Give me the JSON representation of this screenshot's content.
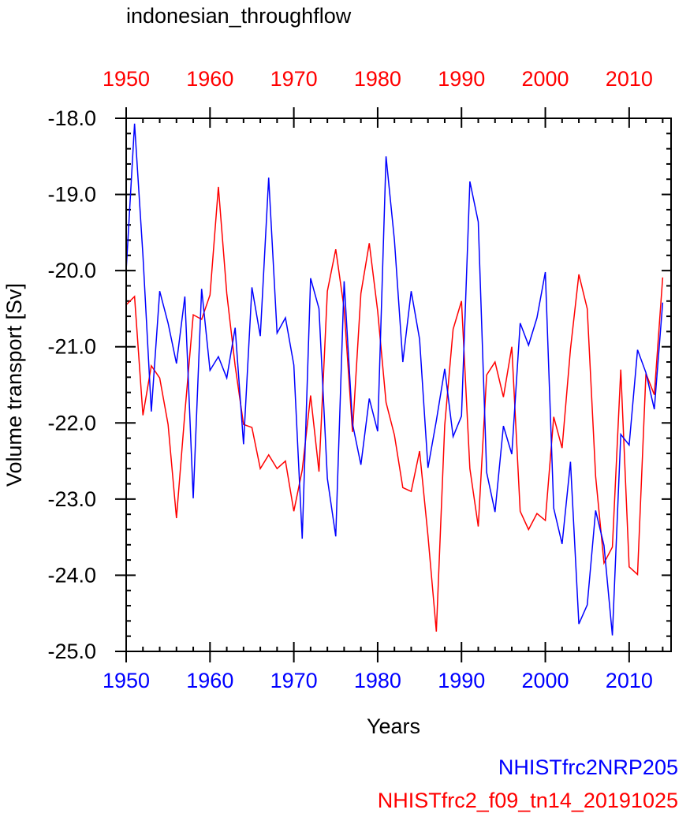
{
  "chart_data": {
    "type": "line",
    "title": "indonesian_throughflow",
    "xlabel": "Years",
    "ylabel": "Volume transport [Sv]",
    "xlim": [
      1950,
      2015
    ],
    "ylim": [
      -25.0,
      -18.0
    ],
    "yticks": [
      -18.0,
      -19.0,
      -20.0,
      -21.0,
      -22.0,
      -23.0,
      -24.0,
      -25.0
    ],
    "ytick_labels": [
      "-18.0",
      "-19.0",
      "-20.0",
      "-21.0",
      "-22.0",
      "-23.0",
      "-24.0",
      "-25.0"
    ],
    "bottom_xticks": [
      1950,
      1960,
      1970,
      1980,
      1990,
      2000,
      2010
    ],
    "bottom_xtick_labels": [
      "1950",
      "1960",
      "1970",
      "1980",
      "1990",
      "2000",
      "2010"
    ],
    "top_xticks": [
      1950,
      1960,
      1970,
      1980,
      1990,
      2000,
      2010
    ],
    "top_xtick_labels": [
      "1950",
      "1960",
      "1970",
      "1980",
      "1990",
      "2000",
      "2010"
    ],
    "colors": {
      "blue": "#0000ff",
      "red": "#ff0000",
      "axis": "#000000"
    },
    "x": [
      1950,
      1951,
      1952,
      1953,
      1954,
      1955,
      1956,
      1957,
      1958,
      1959,
      1960,
      1961,
      1962,
      1963,
      1964,
      1965,
      1966,
      1967,
      1968,
      1969,
      1970,
      1971,
      1972,
      1973,
      1974,
      1975,
      1976,
      1977,
      1978,
      1979,
      1980,
      1981,
      1982,
      1983,
      1984,
      1985,
      1986,
      1987,
      1988,
      1989,
      1990,
      1991,
      1992,
      1993,
      1994,
      1995,
      1996,
      1997,
      1998,
      1999,
      2000,
      2001,
      2002,
      2003,
      2004,
      2005,
      2006,
      2007,
      2008,
      2009,
      2010,
      2011,
      2012,
      2013,
      2014
    ],
    "series": [
      {
        "name": "NHISTfrc2NRP205",
        "color": "#0000ff",
        "values": [
          -20.0,
          -18.07,
          -19.8,
          -21.85,
          -20.27,
          -20.69,
          -21.22,
          -20.34,
          -22.99,
          -20.24,
          -21.31,
          -21.13,
          -21.41,
          -20.75,
          -22.28,
          -20.22,
          -20.86,
          -18.78,
          -20.82,
          -20.62,
          -21.24,
          -23.52,
          -20.1,
          -20.5,
          -22.73,
          -23.49,
          -20.14,
          -22.01,
          -22.55,
          -21.68,
          -22.11,
          -18.5,
          -19.6,
          -21.2,
          -20.27,
          -20.9,
          -22.59,
          -21.97,
          -21.29,
          -22.18,
          -21.91,
          -18.83,
          -19.36,
          -22.65,
          -23.17,
          -22.04,
          -22.41,
          -20.69,
          -20.98,
          -20.62,
          -20.02,
          -23.12,
          -23.59,
          -22.51,
          -24.64,
          -24.39,
          -23.15,
          -23.61,
          -24.79,
          -22.15,
          -22.29,
          -21.04,
          -21.34,
          -21.82,
          -20.42
        ]
      },
      {
        "name": "NHISTfrc2_f09_tn14_20191025",
        "color": "#ff0000",
        "values": [
          -20.45,
          -20.34,
          -21.9,
          -21.25,
          -21.41,
          -22.02,
          -23.25,
          -21.87,
          -20.58,
          -20.64,
          -20.32,
          -18.9,
          -20.3,
          -21.25,
          -22.02,
          -22.06,
          -22.6,
          -22.42,
          -22.6,
          -22.5,
          -23.16,
          -22.62,
          -21.64,
          -22.64,
          -20.27,
          -19.72,
          -20.5,
          -22.12,
          -20.3,
          -19.64,
          -20.53,
          -21.73,
          -22.16,
          -22.85,
          -22.9,
          -22.37,
          -23.48,
          -24.74,
          -22.03,
          -20.77,
          -20.4,
          -22.6,
          -23.36,
          -21.37,
          -21.2,
          -21.66,
          -21.0,
          -23.16,
          -23.4,
          -23.19,
          -23.28,
          -21.92,
          -22.33,
          -21.03,
          -20.05,
          -20.5,
          -22.7,
          -23.84,
          -23.63,
          -21.3,
          -23.89,
          -23.99,
          -21.35,
          -21.63,
          -20.09
        ]
      }
    ]
  }
}
